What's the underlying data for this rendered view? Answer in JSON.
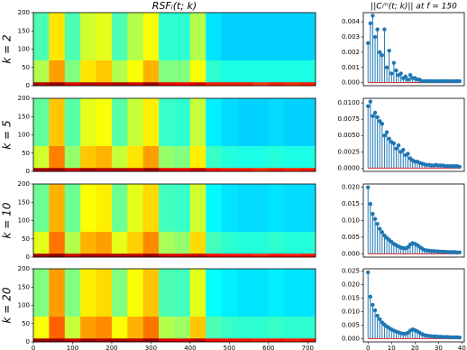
{
  "chart_data": [
    {
      "type": "heatmap",
      "title": "RSFᵢ(t; k)",
      "ylabel": "k = 2",
      "colormap": "jet",
      "xlim": [
        0,
        720
      ],
      "ylim": [
        0,
        200
      ],
      "yticks": [
        0,
        50,
        100,
        150,
        200
      ],
      "xbins": [
        0,
        40,
        80,
        120,
        160,
        200,
        240,
        280,
        320,
        360,
        400,
        440,
        480,
        520,
        560,
        600,
        640,
        680,
        720
      ],
      "ybins": [
        0,
        10,
        70,
        200
      ],
      "z": [
        [
          0.95,
          0.97,
          0.9,
          0.95,
          0.93,
          0.95,
          0.92,
          0.97,
          0.9,
          0.88,
          0.92,
          0.85,
          0.85,
          0.85,
          0.82,
          0.85,
          0.83,
          0.85
        ],
        [
          0.55,
          0.72,
          0.5,
          0.65,
          0.68,
          0.55,
          0.62,
          0.7,
          0.5,
          0.5,
          0.62,
          0.42,
          0.4,
          0.4,
          0.4,
          0.4,
          0.4,
          0.4
        ],
        [
          0.45,
          0.65,
          0.45,
          0.58,
          0.6,
          0.45,
          0.55,
          0.62,
          0.42,
          0.42,
          0.55,
          0.35,
          0.33,
          0.33,
          0.33,
          0.33,
          0.33,
          0.33
        ]
      ]
    },
    {
      "type": "stem",
      "title": "||Cᵢᵐ(t; k)|| at f = 150",
      "color": "#1f77b4",
      "baseline_color": "#d62728",
      "xlim": [
        -2,
        41
      ],
      "ylim": [
        -0.0002,
        0.0046
      ],
      "yticks": [
        {
          "value": 0,
          "label": "0.000"
        },
        {
          "value": 0.001,
          "label": "0.001"
        },
        {
          "value": 0.002,
          "label": "0.002"
        },
        {
          "value": 0.003,
          "label": "0.003"
        },
        {
          "value": 0.004,
          "label": "0.004"
        }
      ],
      "x": [
        0,
        1,
        2,
        3,
        4,
        5,
        6,
        7,
        8,
        9,
        10,
        11,
        12,
        13,
        14,
        15,
        16,
        17,
        18,
        19,
        20,
        21,
        22,
        23,
        24,
        25,
        26,
        27,
        28,
        29,
        30,
        31,
        32,
        33,
        34,
        35,
        36,
        37,
        38,
        39
      ],
      "values": [
        0.0026,
        0.0039,
        0.0044,
        0.003,
        0.0035,
        0.002,
        0.0018,
        0.0035,
        0.001,
        0.0021,
        0.0006,
        0.0013,
        0.0008,
        0.0005,
        0.0006,
        0.0003,
        0.0004,
        0.0002,
        0.0005,
        0.0003,
        0.0003,
        0.0002,
        0.0002,
        0.0001,
        0.0001,
        0.0001,
        0.0001,
        0.0001,
        0.0001,
        0.0001,
        0.0001,
        0.0001,
        0.0001,
        0.0001,
        0.0001,
        0.0001,
        0.0001,
        0.0001,
        0.0001,
        0.0001
      ]
    },
    {
      "type": "heatmap",
      "ylabel": "k = 5",
      "colormap": "jet",
      "xlim": [
        0,
        720
      ],
      "ylim": [
        0,
        200
      ],
      "yticks": [
        0,
        50,
        100,
        150,
        200
      ],
      "xbins": [
        0,
        40,
        80,
        120,
        160,
        200,
        240,
        280,
        320,
        360,
        400,
        440,
        480,
        520,
        560,
        600,
        640,
        680,
        720
      ],
      "ybins": [
        0,
        10,
        70,
        200
      ],
      "z": [
        [
          0.96,
          0.97,
          0.92,
          0.96,
          0.94,
          0.95,
          0.93,
          0.97,
          0.9,
          0.89,
          0.93,
          0.86,
          0.85,
          0.85,
          0.83,
          0.85,
          0.84,
          0.85
        ],
        [
          0.58,
          0.75,
          0.52,
          0.68,
          0.7,
          0.57,
          0.65,
          0.72,
          0.52,
          0.5,
          0.64,
          0.43,
          0.41,
          0.4,
          0.4,
          0.41,
          0.4,
          0.4
        ],
        [
          0.47,
          0.68,
          0.46,
          0.6,
          0.62,
          0.46,
          0.57,
          0.64,
          0.43,
          0.42,
          0.57,
          0.36,
          0.34,
          0.33,
          0.33,
          0.34,
          0.33,
          0.33
        ]
      ]
    },
    {
      "type": "stem",
      "color": "#1f77b4",
      "baseline_color": "#d62728",
      "xlim": [
        -2,
        41
      ],
      "ylim": [
        -0.0005,
        0.0107
      ],
      "yticks": [
        {
          "value": 0,
          "label": "0.0000"
        },
        {
          "value": 0.0025,
          "label": "0.0025"
        },
        {
          "value": 0.005,
          "label": "0.0050"
        },
        {
          "value": 0.0075,
          "label": "0.0075"
        },
        {
          "value": 0.01,
          "label": "0.0100"
        }
      ],
      "x": [
        0,
        1,
        2,
        3,
        4,
        5,
        6,
        7,
        8,
        9,
        10,
        11,
        12,
        13,
        14,
        15,
        16,
        17,
        18,
        19,
        20,
        21,
        22,
        23,
        24,
        25,
        26,
        27,
        28,
        29,
        30,
        31,
        32,
        33,
        34,
        35,
        36,
        37,
        38,
        39
      ],
      "values": [
        0.0095,
        0.0102,
        0.008,
        0.0085,
        0.0078,
        0.0072,
        0.0068,
        0.005,
        0.0055,
        0.0045,
        0.004,
        0.0038,
        0.003,
        0.0035,
        0.0025,
        0.0028,
        0.002,
        0.0022,
        0.0015,
        0.0012,
        0.001,
        0.001,
        0.0008,
        0.0007,
        0.0006,
        0.0005,
        0.0005,
        0.0004,
        0.0004,
        0.0005,
        0.0004,
        0.0004,
        0.0004,
        0.0003,
        0.0003,
        0.0003,
        0.0003,
        0.0003,
        0.0003,
        0.0002
      ]
    },
    {
      "type": "heatmap",
      "ylabel": "k = 10",
      "colormap": "jet",
      "xlim": [
        0,
        720
      ],
      "ylim": [
        0,
        200
      ],
      "yticks": [
        0,
        50,
        100,
        150,
        200
      ],
      "xbins": [
        0,
        40,
        80,
        120,
        160,
        200,
        240,
        280,
        320,
        360,
        400,
        440,
        480,
        520,
        560,
        600,
        640,
        680,
        720
      ],
      "ybins": [
        0,
        10,
        70,
        200
      ],
      "z": [
        [
          0.96,
          0.98,
          0.92,
          0.96,
          0.95,
          0.95,
          0.94,
          0.97,
          0.91,
          0.9,
          0.93,
          0.87,
          0.86,
          0.86,
          0.84,
          0.86,
          0.85,
          0.86
        ],
        [
          0.6,
          0.76,
          0.55,
          0.7,
          0.72,
          0.6,
          0.67,
          0.74,
          0.54,
          0.52,
          0.66,
          0.44,
          0.42,
          0.41,
          0.41,
          0.42,
          0.41,
          0.41
        ],
        [
          0.48,
          0.7,
          0.48,
          0.62,
          0.64,
          0.48,
          0.6,
          0.66,
          0.44,
          0.43,
          0.58,
          0.37,
          0.35,
          0.34,
          0.34,
          0.35,
          0.34,
          0.34
        ]
      ]
    },
    {
      "type": "stem",
      "color": "#1f77b4",
      "baseline_color": "#d62728",
      "xlim": [
        -2,
        41
      ],
      "ylim": [
        -0.001,
        0.021
      ],
      "yticks": [
        {
          "value": 0,
          "label": "0.000"
        },
        {
          "value": 0.005,
          "label": "0.005"
        },
        {
          "value": 0.01,
          "label": "0.010"
        },
        {
          "value": 0.015,
          "label": "0.015"
        },
        {
          "value": 0.02,
          "label": "0.020"
        }
      ],
      "x": [
        0,
        1,
        2,
        3,
        4,
        5,
        6,
        7,
        8,
        9,
        10,
        11,
        12,
        13,
        14,
        15,
        16,
        17,
        18,
        19,
        20,
        21,
        22,
        23,
        24,
        25,
        26,
        27,
        28,
        29,
        30,
        31,
        32,
        33,
        34,
        35,
        36,
        37,
        38,
        39
      ],
      "values": [
        0.02,
        0.015,
        0.012,
        0.0105,
        0.009,
        0.0075,
        0.0065,
        0.0055,
        0.0048,
        0.0042,
        0.0036,
        0.003,
        0.0026,
        0.0022,
        0.0019,
        0.0017,
        0.0016,
        0.002,
        0.0028,
        0.0032,
        0.003,
        0.0026,
        0.0021,
        0.0016,
        0.0012,
        0.001,
        0.0009,
        0.0008,
        0.0008,
        0.0007,
        0.0007,
        0.0006,
        0.0006,
        0.0006,
        0.0005,
        0.0005,
        0.0005,
        0.0005,
        0.0004,
        0.0004
      ]
    },
    {
      "type": "heatmap",
      "ylabel": "k = 20",
      "colormap": "jet",
      "xlim": [
        0,
        720
      ],
      "ylim": [
        0,
        200
      ],
      "xticks": [
        0,
        100,
        200,
        300,
        400,
        500,
        600,
        700
      ],
      "yticks": [
        0,
        50,
        100,
        150,
        200
      ],
      "xbins": [
        0,
        40,
        80,
        120,
        160,
        200,
        240,
        280,
        320,
        360,
        400,
        440,
        480,
        520,
        560,
        600,
        640,
        680,
        720
      ],
      "ybins": [
        0,
        10,
        70,
        200
      ],
      "z": [
        [
          0.97,
          0.98,
          0.93,
          0.97,
          0.95,
          0.96,
          0.94,
          0.98,
          0.91,
          0.9,
          0.94,
          0.87,
          0.86,
          0.86,
          0.85,
          0.86,
          0.85,
          0.86
        ],
        [
          0.62,
          0.78,
          0.57,
          0.72,
          0.74,
          0.62,
          0.7,
          0.76,
          0.55,
          0.53,
          0.68,
          0.45,
          0.43,
          0.42,
          0.42,
          0.43,
          0.42,
          0.42
        ],
        [
          0.5,
          0.72,
          0.5,
          0.64,
          0.66,
          0.5,
          0.62,
          0.68,
          0.45,
          0.44,
          0.6,
          0.38,
          0.36,
          0.35,
          0.35,
          0.36,
          0.35,
          0.35
        ]
      ]
    },
    {
      "type": "stem",
      "color": "#1f77b4",
      "baseline_color": "#d62728",
      "xlim": [
        -2,
        41
      ],
      "ylim": [
        -0.0012,
        0.0258
      ],
      "xticks": [
        0,
        10,
        20,
        30,
        40
      ],
      "yticks": [
        {
          "value": 0,
          "label": "0.000"
        },
        {
          "value": 0.005,
          "label": "0.005"
        },
        {
          "value": 0.01,
          "label": "0.010"
        },
        {
          "value": 0.015,
          "label": "0.015"
        },
        {
          "value": 0.02,
          "label": "0.020"
        },
        {
          "value": 0.025,
          "label": "0.025"
        }
      ],
      "x": [
        0,
        1,
        2,
        3,
        4,
        5,
        6,
        7,
        8,
        9,
        10,
        11,
        12,
        13,
        14,
        15,
        16,
        17,
        18,
        19,
        20,
        21,
        22,
        23,
        24,
        25,
        26,
        27,
        28,
        29,
        30,
        31,
        32,
        33,
        34,
        35,
        36,
        37,
        38,
        39
      ],
      "values": [
        0.0245,
        0.0155,
        0.0125,
        0.0105,
        0.0085,
        0.0072,
        0.006,
        0.0052,
        0.0045,
        0.004,
        0.0034,
        0.003,
        0.0026,
        0.0023,
        0.002,
        0.0018,
        0.0018,
        0.0022,
        0.003,
        0.0034,
        0.0031,
        0.0027,
        0.0022,
        0.0017,
        0.0013,
        0.0011,
        0.001,
        0.0009,
        0.0008,
        0.0008,
        0.0007,
        0.0007,
        0.0006,
        0.0006,
        0.0006,
        0.0005,
        0.0005,
        0.0005,
        0.0005,
        0.0004
      ]
    }
  ]
}
